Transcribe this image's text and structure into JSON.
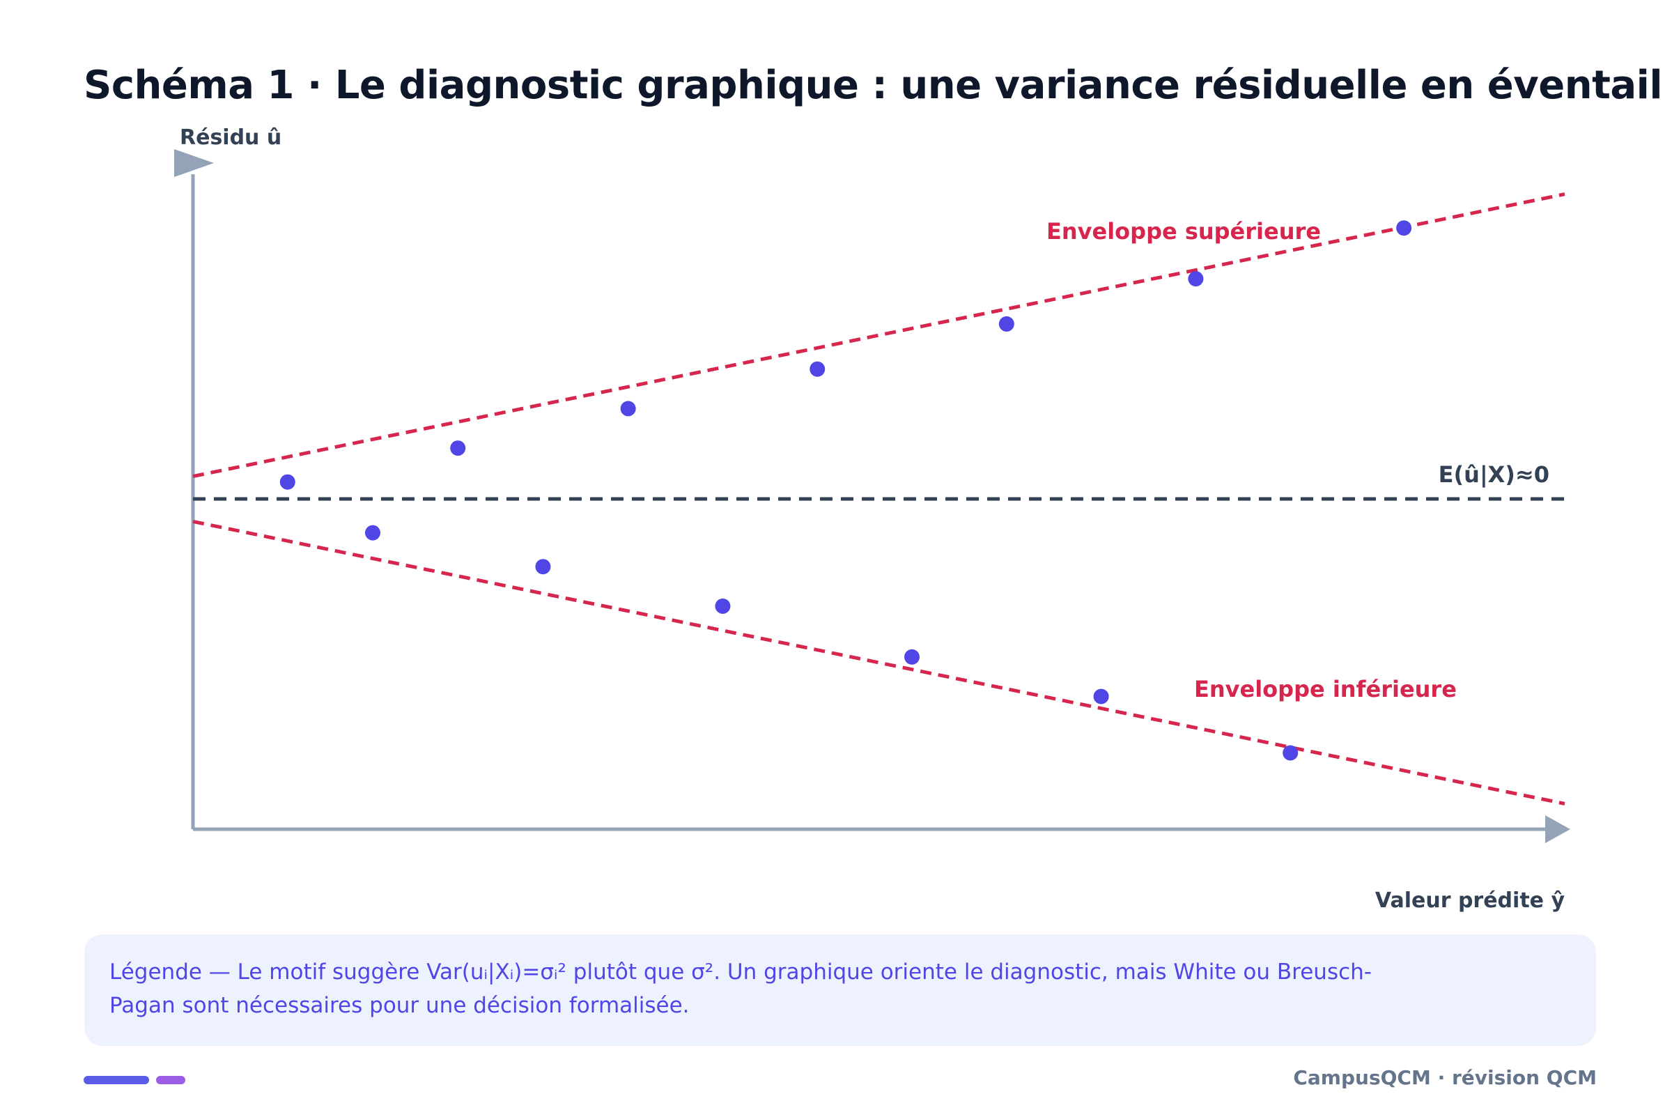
{
  "title": "Schéma 1 · Le diagnostic graphique : une variance résiduelle en éventail",
  "diagram": {
    "y_axis_label": "Résidu û",
    "x_axis_label": "Valeur prédite ŷ",
    "upper_envelope_label": "Enveloppe supérieure",
    "lower_envelope_label": "Enveloppe inférieure",
    "mean_line_label": "E(û|X)≈0",
    "points": [
      {
        "x": 1,
        "y": 0.6
      },
      {
        "x": 1.9,
        "y": -1.2
      },
      {
        "x": 2.8,
        "y": 1.8
      },
      {
        "x": 3.7,
        "y": -2.4
      },
      {
        "x": 4.6,
        "y": 3.2
      },
      {
        "x": 5.6,
        "y": -3.8
      },
      {
        "x": 6.6,
        "y": 4.6
      },
      {
        "x": 7.6,
        "y": -5.6
      },
      {
        "x": 8.6,
        "y": 6.2
      },
      {
        "x": 9.6,
        "y": -7.0
      },
      {
        "x": 10.6,
        "y": 7.8
      },
      {
        "x": 11.6,
        "y": -9.0
      },
      {
        "x": 12.8,
        "y": 9.6
      }
    ],
    "upper_envelope": {
      "x_start": 0,
      "y_start": 0.8,
      "x_end": 14.5,
      "y_end": 10.8
    },
    "lower_envelope": {
      "x_start": 0,
      "y_start": -0.8,
      "x_end": 14.5,
      "y_end": -10.8
    },
    "x_range": [
      0,
      14.5
    ],
    "y_range": [
      -12,
      12
    ],
    "colors": {
      "axis": "#94a3b8",
      "envelope": "#d6264d",
      "mean": "#334155",
      "point": "#4f46e5"
    }
  },
  "legend": {
    "text": "Légende — Le motif suggère Var(uᵢ|Xᵢ)=σᵢ² plutôt que σ². Un graphique oriente le diagnostic, mais White ou Breusch-Pagan sont nécessaires pour une décision formalisée."
  },
  "footer": {
    "text": "CampusQCM · révision QCM",
    "bar_color_1": "#5b5be6",
    "bar_color_2": "#9b5de5"
  }
}
